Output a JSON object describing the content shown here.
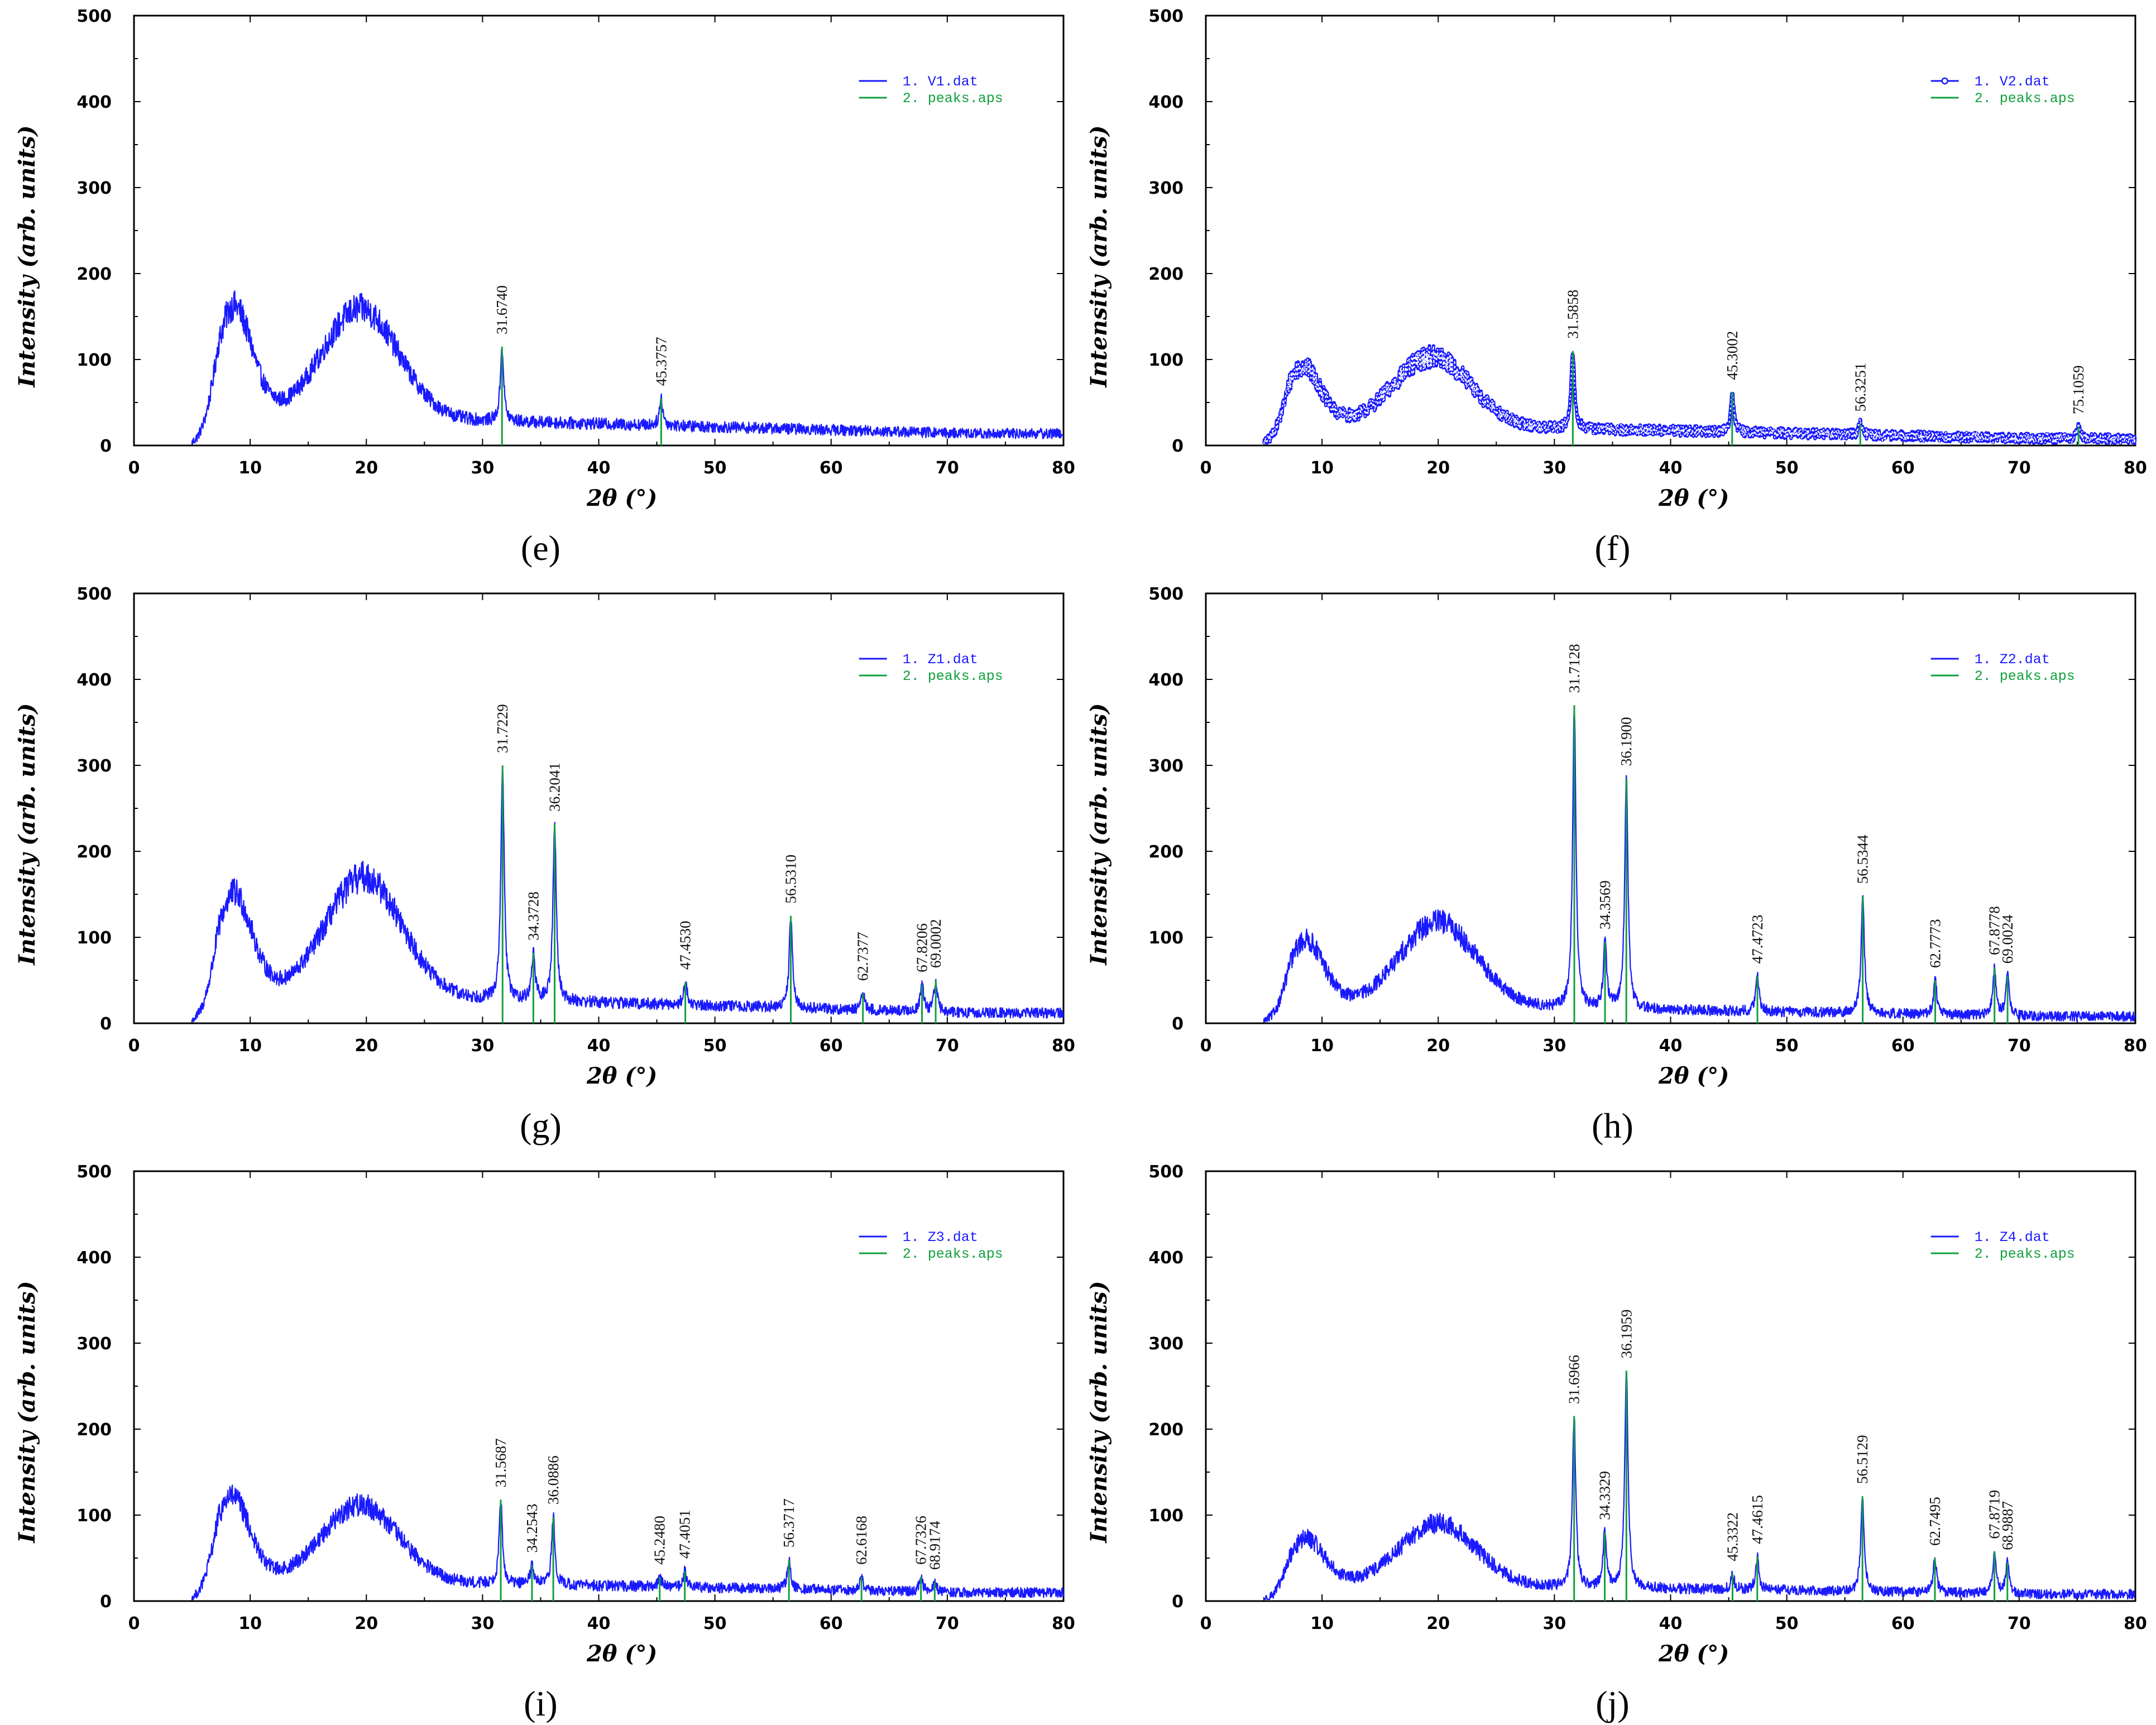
{
  "figure": {
    "colors": {
      "pattern": "#1a1aff",
      "peaks": "#12a03c",
      "axis": "#000000"
    },
    "x_ticks": [
      "0",
      "10",
      "20",
      "30",
      "40",
      "50",
      "60",
      "70",
      "80"
    ],
    "y_ticks": [
      "0",
      "100",
      "200",
      "300",
      "400",
      "500"
    ],
    "x_title": "2θ (°)",
    "y_title": "Intensity (arb. units)"
  },
  "chart_data": [
    {
      "type": "line",
      "panel": "e",
      "panel_label": "(e)",
      "xlabel": "2θ (°)",
      "ylabel": "Intensity (arb. units)",
      "xlim": [
        0,
        80
      ],
      "ylim": [
        0,
        500
      ],
      "legend_position": "top-right",
      "legend": [
        "1. V1.dat",
        "2. peaks.aps"
      ],
      "marker_series": false,
      "series": [
        {
          "name": "1. V1.dat",
          "amorphous": {
            "start": 5,
            "peak1": [
              8.5,
              160
            ],
            "peak2": [
              19.5,
              145
            ],
            "base": 35,
            "tail": 14
          }
        }
      ],
      "peaks": [
        {
          "label": "31.6740",
          "x": 31.674,
          "y": 115
        },
        {
          "label": "45.3757",
          "x": 45.3757,
          "y": 55
        }
      ]
    },
    {
      "type": "line",
      "panel": "f",
      "panel_label": "(f)",
      "xlabel": "2θ (°)",
      "ylabel": "Intensity (arb. units)",
      "xlim": [
        0,
        80
      ],
      "ylim": [
        0,
        500
      ],
      "legend_position": "top-right",
      "legend": [
        "1. V2.dat",
        "2. peaks.aps"
      ],
      "marker_series": true,
      "series": [
        {
          "name": "1. V2.dat",
          "amorphous": {
            "start": 5,
            "peak1": [
              8.2,
              90
            ],
            "peak2": [
              19.5,
              92
            ],
            "base": 25,
            "tail": 8
          }
        }
      ],
      "peaks": [
        {
          "label": "31.5858",
          "x": 31.5858,
          "y": 110
        },
        {
          "label": "45.3002",
          "x": 45.3002,
          "y": 62
        },
        {
          "label": "56.3251",
          "x": 56.3251,
          "y": 25
        },
        {
          "label": "75.1059",
          "x": 75.1059,
          "y": 22
        }
      ]
    },
    {
      "type": "line",
      "panel": "g",
      "panel_label": "(g)",
      "xlabel": "2θ (°)",
      "ylabel": "Intensity (arb. units)",
      "xlim": [
        0,
        80
      ],
      "ylim": [
        0,
        500
      ],
      "legend_position": "top-right",
      "legend": [
        "1. Z1.dat",
        "2. peaks.aps"
      ],
      "marker_series": false,
      "series": [
        {
          "name": "1. Z1.dat",
          "amorphous": {
            "start": 5,
            "peak1": [
              8.5,
              148
            ],
            "peak2": [
              19.8,
              158
            ],
            "base": 35,
            "tail": 12
          }
        }
      ],
      "peaks": [
        {
          "label": "31.7229",
          "x": 31.7229,
          "y": 300
        },
        {
          "label": "34.3728",
          "x": 34.3728,
          "y": 82
        },
        {
          "label": "36.2041",
          "x": 36.2041,
          "y": 232
        },
        {
          "label": "47.4530",
          "x": 47.453,
          "y": 48
        },
        {
          "label": "56.5310",
          "x": 56.531,
          "y": 125
        },
        {
          "label": "62.7377",
          "x": 62.7377,
          "y": 35
        },
        {
          "label": "67.8206",
          "x": 67.8206,
          "y": 45
        },
        {
          "label": "69.0002",
          "x": 69.0002,
          "y": 50
        }
      ]
    },
    {
      "type": "line",
      "panel": "h",
      "panel_label": "(h)",
      "xlabel": "2θ (°)",
      "ylabel": "Intensity (arb. units)",
      "xlim": [
        0,
        80
      ],
      "ylim": [
        0,
        500
      ],
      "legend_position": "top-right",
      "legend": [
        "1. Z2.dat",
        "2. peaks.aps"
      ],
      "marker_series": false,
      "series": [
        {
          "name": "1. Z2.dat",
          "amorphous": {
            "start": 5,
            "peak1": [
              8.5,
              95
            ],
            "peak2": [
              20,
              112
            ],
            "base": 22,
            "tail": 8
          }
        }
      ],
      "peaks": [
        {
          "label": "31.7128",
          "x": 31.7128,
          "y": 370
        },
        {
          "label": "34.3569",
          "x": 34.3569,
          "y": 95
        },
        {
          "label": "36.1900",
          "x": 36.19,
          "y": 285
        },
        {
          "label": "47.4723",
          "x": 47.4723,
          "y": 55
        },
        {
          "label": "56.5344",
          "x": 56.5344,
          "y": 148
        },
        {
          "label": "62.7773",
          "x": 62.7773,
          "y": 50
        },
        {
          "label": "67.8778",
          "x": 67.8778,
          "y": 65
        },
        {
          "label": "69.0024",
          "x": 69.0024,
          "y": 55
        }
      ]
    },
    {
      "type": "line",
      "panel": "i",
      "panel_label": "(i)",
      "xlabel": "2θ (°)",
      "ylabel": "Intensity (arb. units)",
      "xlim": [
        0,
        80
      ],
      "ylim": [
        0,
        500
      ],
      "legend_position": "top-right",
      "legend": [
        "1. Z3.dat",
        "2. peaks.aps"
      ],
      "marker_series": false,
      "series": [
        {
          "name": "1. Z3.dat",
          "amorphous": {
            "start": 5,
            "peak1": [
              8.3,
              122
            ],
            "peak2": [
              19.5,
              102
            ],
            "base": 25,
            "tail": 10
          }
        }
      ],
      "peaks": [
        {
          "label": "31.5687",
          "x": 31.5687,
          "y": 118
        },
        {
          "label": "34.2543",
          "x": 34.2543,
          "y": 42
        },
        {
          "label": "36.0886",
          "x": 36.0886,
          "y": 98
        },
        {
          "label": "45.2480",
          "x": 45.248,
          "y": 28
        },
        {
          "label": "47.4051",
          "x": 47.4051,
          "y": 35
        },
        {
          "label": "56.3717",
          "x": 56.3717,
          "y": 48
        },
        {
          "label": "62.6168",
          "x": 62.6168,
          "y": 28
        },
        {
          "label": "67.7326",
          "x": 67.7326,
          "y": 28
        },
        {
          "label": "68.9174",
          "x": 68.9174,
          "y": 22
        }
      ]
    },
    {
      "type": "line",
      "panel": "j",
      "panel_label": "(j)",
      "xlabel": "2θ (°)",
      "ylabel": "Intensity (arb. units)",
      "xlim": [
        0,
        80
      ],
      "ylim": [
        0,
        500
      ],
      "legend_position": "top-right",
      "legend": [
        "1. Z4.dat",
        "2. peaks.aps"
      ],
      "marker_series": false,
      "series": [
        {
          "name": "1. Z4.dat",
          "amorphous": {
            "start": 5,
            "peak1": [
              8.5,
              70
            ],
            "peak2": [
              20,
              82
            ],
            "base": 20,
            "tail": 8
          }
        }
      ],
      "peaks": [
        {
          "label": "31.6966",
          "x": 31.6966,
          "y": 215
        },
        {
          "label": "34.3329",
          "x": 34.3329,
          "y": 80
        },
        {
          "label": "36.1959",
          "x": 36.1959,
          "y": 268
        },
        {
          "label": "45.3322",
          "x": 45.3322,
          "y": 32
        },
        {
          "label": "47.4615",
          "x": 47.4615,
          "y": 52
        },
        {
          "label": "56.5129",
          "x": 56.5129,
          "y": 122
        },
        {
          "label": "62.7495",
          "x": 62.7495,
          "y": 50
        },
        {
          "label": "67.8719",
          "x": 67.8719,
          "y": 58
        },
        {
          "label": "68.9887",
          "x": 68.9887,
          "y": 45
        }
      ]
    }
  ]
}
